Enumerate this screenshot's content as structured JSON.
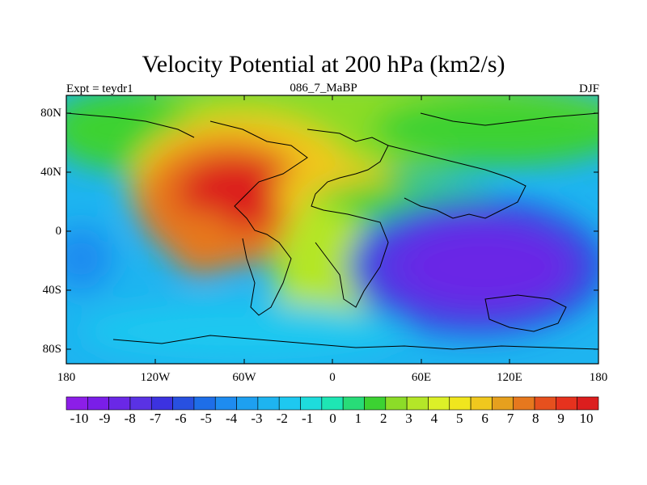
{
  "title": "Velocity Potential at 200 hPa (km2/s)",
  "left_label": "Expt = teydr1",
  "center_label": "086_7_MaBP",
  "right_label": "DJF",
  "y_ticks": [
    "80N",
    "40N",
    "0",
    "40S",
    "80S"
  ],
  "x_ticks": [
    "180",
    "120W",
    "60W",
    "0",
    "60E",
    "120E",
    "180"
  ],
  "colorbar": {
    "labels": [
      "-10",
      "-9",
      "-8",
      "-7",
      "-6",
      "-5",
      "-4",
      "-3",
      "-2",
      "-1",
      "0",
      "1",
      "2",
      "3",
      "4",
      "5",
      "6",
      "7",
      "8",
      "9",
      "10"
    ],
    "colors": [
      "#8c1ee8",
      "#7a1ee8",
      "#6a28e6",
      "#5a32e4",
      "#3c32e0",
      "#2850e0",
      "#1e6ee8",
      "#1e8cf0",
      "#1ea0f0",
      "#1eb4f0",
      "#1ec8f0",
      "#1edcdc",
      "#1ee6b4",
      "#28dc78",
      "#3cd232",
      "#8cdc28",
      "#b4e628",
      "#dcf028",
      "#f0e61e",
      "#f0c81e",
      "#e6a01e",
      "#e6781e",
      "#e6501e",
      "#e6321e",
      "#dc1e1e"
    ]
  },
  "colors": {
    "positive_max": "#dc2b1e",
    "negative_min": "#6e28e6",
    "zero": "#1ed2e6"
  }
}
